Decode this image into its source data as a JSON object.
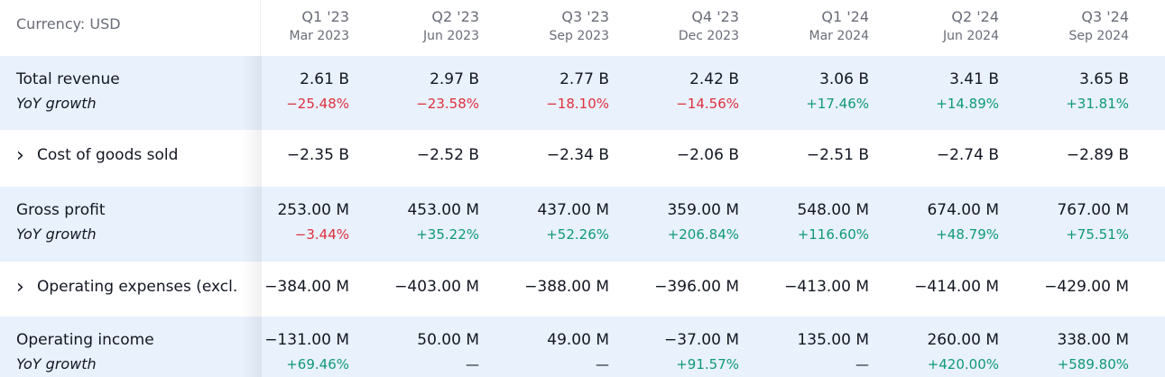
{
  "currency_label": "Currency: USD",
  "periods": [
    {
      "q": "Q1 '23",
      "d": "Mar 2023"
    },
    {
      "q": "Q2 '23",
      "d": "Jun 2023"
    },
    {
      "q": "Q3 '23",
      "d": "Sep 2023"
    },
    {
      "q": "Q4 '23",
      "d": "Dec 2023"
    },
    {
      "q": "Q1 '24",
      "d": "Mar 2024"
    },
    {
      "q": "Q2 '24",
      "d": "Jun 2024"
    },
    {
      "q": "Q3 '24",
      "d": "Sep 2024"
    }
  ],
  "rows": [
    {
      "label": "Total revenue",
      "expandable": false,
      "values": [
        "2.61 B",
        "2.97 B",
        "2.77 B",
        "2.42 B",
        "3.06 B",
        "3.41 B",
        "3.65 B"
      ],
      "growth_label": "YoY growth",
      "growth": [
        "−25.48%",
        "−23.58%",
        "−18.10%",
        "−14.56%",
        "+17.46%",
        "+14.89%",
        "+31.81%"
      ]
    },
    {
      "label": "Cost of goods sold",
      "expandable": true,
      "values": [
        "−2.35 B",
        "−2.52 B",
        "−2.34 B",
        "−2.06 B",
        "−2.51 B",
        "−2.74 B",
        "−2.89 B"
      ]
    },
    {
      "label": "Gross profit",
      "expandable": false,
      "values": [
        "253.00 M",
        "453.00 M",
        "437.00 M",
        "359.00 M",
        "548.00 M",
        "674.00 M",
        "767.00 M"
      ],
      "growth_label": "YoY growth",
      "growth": [
        "−3.44%",
        "+35.22%",
        "+52.26%",
        "+206.84%",
        "+116.60%",
        "+48.79%",
        "+75.51%"
      ]
    },
    {
      "label": "Operating expenses (excl.",
      "expandable": true,
      "values": [
        "−384.00 M",
        "−403.00 M",
        "−388.00 M",
        "−396.00 M",
        "−413.00 M",
        "−414.00 M",
        "−429.00 M"
      ]
    },
    {
      "label": "Operating income",
      "expandable": false,
      "values": [
        "−131.00 M",
        "50.00 M",
        "49.00 M",
        "−37.00 M",
        "135.00 M",
        "260.00 M",
        "338.00 M"
      ],
      "growth_label": "YoY growth",
      "growth": [
        "+69.46%",
        "—",
        "—",
        "+91.57%",
        "—",
        "+420.00%",
        "+589.80%"
      ]
    }
  ],
  "icons": {
    "expand": "chevron-right-icon"
  },
  "colors": {
    "negative": "#e0303e",
    "positive": "#10997a",
    "highlight_row": "#e8f1fc"
  }
}
